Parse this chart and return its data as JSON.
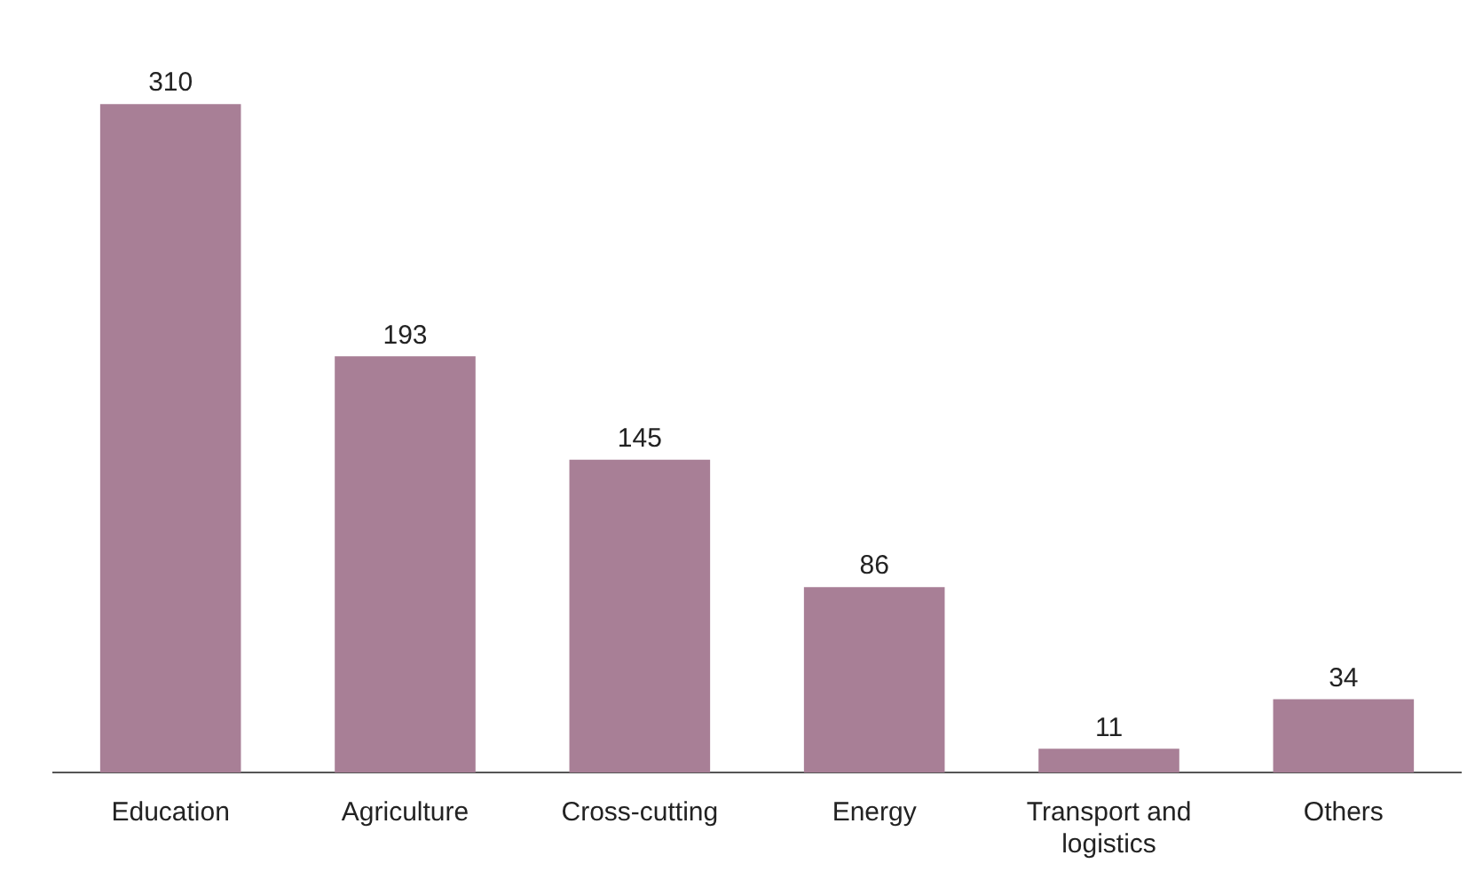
{
  "chart_data": {
    "type": "bar",
    "categories": [
      "Education",
      "Agriculture",
      "Cross-cutting",
      "Energy",
      "Transport and logistics",
      "Others"
    ],
    "values": [
      310,
      193,
      145,
      86,
      11,
      34
    ],
    "color": "#a87f96",
    "data_labels": true,
    "grid": false,
    "legend": false
  }
}
